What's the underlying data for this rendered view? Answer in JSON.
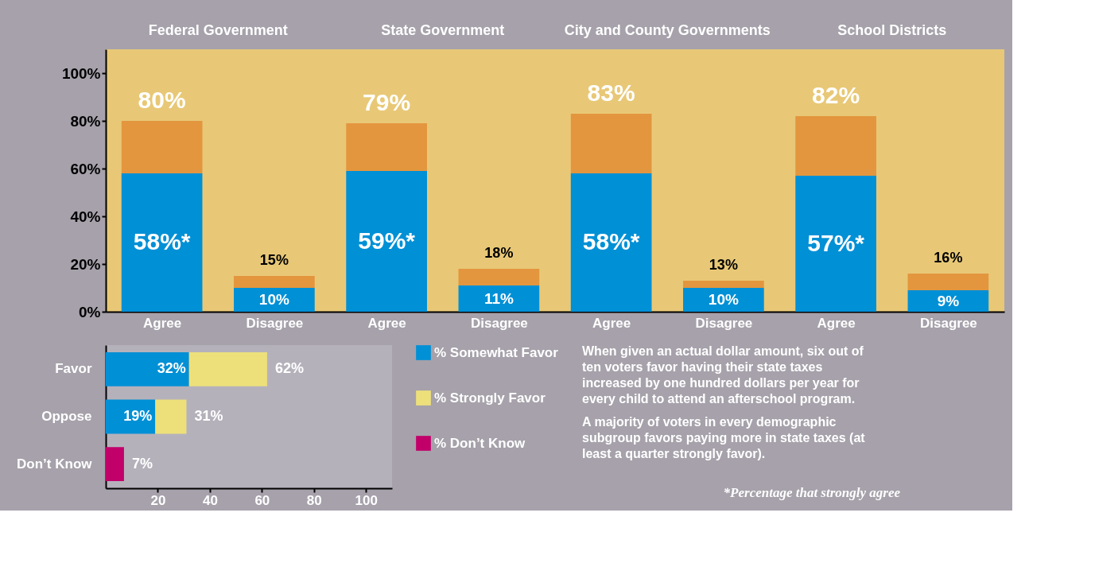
{
  "chart_data": [
    {
      "type": "bar",
      "stacked": true,
      "categories": [
        "Agree",
        "Disagree",
        "Agree",
        "Disagree",
        "Agree",
        "Disagree",
        "Agree",
        "Disagree"
      ],
      "series": [
        {
          "color": "#0090d6",
          "values": [
            58,
            10,
            59,
            11,
            58,
            10,
            57,
            9
          ],
          "value_labels": [
            "58%*",
            "10%",
            "59%*",
            "11%",
            "58%*",
            "10%",
            "57%*",
            "9%"
          ]
        },
        {
          "color": "#e3963e",
          "values": [
            22,
            5,
            20,
            7,
            25,
            3,
            25,
            7
          ]
        }
      ],
      "totals": [
        "80%",
        "15%",
        "79%",
        "18%",
        "83%",
        "13%",
        "82%",
        "16%"
      ],
      "ylim": [
        0,
        110
      ],
      "yticks": [
        {
          "value": 0,
          "label": "0%"
        },
        {
          "value": 20,
          "label": "20%"
        },
        {
          "value": 40,
          "label": "40%"
        },
        {
          "value": 60,
          "label": "60%"
        },
        {
          "value": 80,
          "label": "80%"
        },
        {
          "value": 100,
          "label": "100%"
        }
      ],
      "annotations": [
        "Federal Government",
        "State Government",
        "City and County Governments",
        "School Districts"
      ]
    },
    {
      "type": "bar",
      "stacked": true,
      "orientation": "horizontal",
      "categories": [
        "Favor",
        "Oppose",
        "Don’t Know"
      ],
      "series": [
        {
          "name": "% Somewhat Favor",
          "color": "#0090d6",
          "values": [
            32,
            19,
            null
          ],
          "value_labels": [
            "32%",
            "19%",
            null
          ]
        },
        {
          "name": "% Strongly Favor",
          "color": "#ede07a",
          "values": [
            30,
            12,
            null
          ]
        },
        {
          "name": "% Don’t Know",
          "color": "#c2006a",
          "values": [
            null,
            null,
            7
          ]
        }
      ],
      "totals": [
        "62%",
        "31%",
        "7%"
      ],
      "xlim": [
        0,
        110
      ],
      "xticks": [
        20,
        40,
        60,
        80,
        100
      ],
      "legend": "right",
      "annotations": [
        "When given an actual dollar amount, six out of ten voters favor having their state taxes increased by one hundred dollars per year for every child to attend an afterschool program.",
        "A majority of voters in every demographic subgroup favors paying more in state taxes (at least a quarter strongly favor).",
        "*Percentage that strongly agree"
      ]
    }
  ]
}
